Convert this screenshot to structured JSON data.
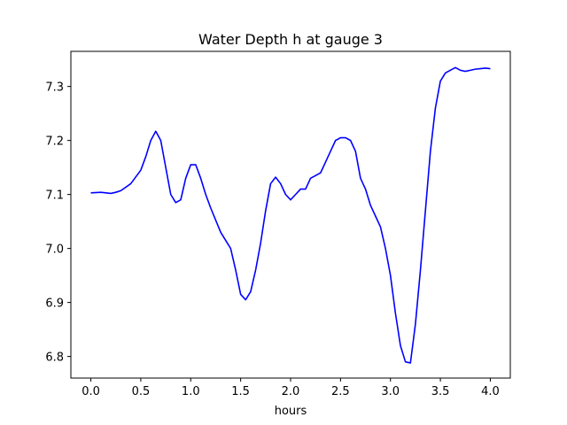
{
  "chart_data": {
    "type": "line",
    "title": "Water Depth h at gauge 3",
    "xlabel": "hours",
    "ylabel": "",
    "xlim": [
      -0.2,
      4.2
    ],
    "ylim": [
      6.76,
      7.365
    ],
    "xticks": [
      0.0,
      0.5,
      1.0,
      1.5,
      2.0,
      2.5,
      3.0,
      3.5,
      4.0
    ],
    "xtick_labels": [
      "0.0",
      "0.5",
      "1.0",
      "1.5",
      "2.0",
      "2.5",
      "3.0",
      "3.5",
      "4.0"
    ],
    "yticks": [
      6.8,
      6.9,
      7.0,
      7.1,
      7.2,
      7.3
    ],
    "ytick_labels": [
      "6.8",
      "6.9",
      "7.0",
      "7.1",
      "7.2",
      "7.3"
    ],
    "grid": false,
    "series": [
      {
        "color": "#0000ff",
        "x": [
          0.0,
          0.1,
          0.2,
          0.25,
          0.3,
          0.4,
          0.5,
          0.55,
          0.6,
          0.65,
          0.7,
          0.75,
          0.8,
          0.85,
          0.9,
          0.95,
          1.0,
          1.05,
          1.1,
          1.15,
          1.2,
          1.3,
          1.4,
          1.45,
          1.5,
          1.55,
          1.6,
          1.65,
          1.7,
          1.75,
          1.8,
          1.85,
          1.9,
          1.95,
          2.0,
          2.05,
          2.1,
          2.15,
          2.2,
          2.25,
          2.3,
          2.35,
          2.4,
          2.45,
          2.5,
          2.55,
          2.6,
          2.65,
          2.7,
          2.75,
          2.8,
          2.85,
          2.9,
          2.95,
          3.0,
          3.05,
          3.1,
          3.15,
          3.2,
          3.25,
          3.3,
          3.35,
          3.4,
          3.45,
          3.5,
          3.55,
          3.6,
          3.65,
          3.7,
          3.75,
          3.8,
          3.85,
          3.9,
          3.95,
          4.0
        ],
        "y": [
          7.103,
          7.104,
          7.102,
          7.104,
          7.107,
          7.12,
          7.145,
          7.17,
          7.2,
          7.217,
          7.2,
          7.15,
          7.1,
          7.085,
          7.09,
          7.13,
          7.155,
          7.155,
          7.13,
          7.1,
          7.075,
          7.03,
          7.0,
          6.96,
          6.915,
          6.905,
          6.92,
          6.96,
          7.01,
          7.07,
          7.12,
          7.132,
          7.12,
          7.1,
          7.09,
          7.1,
          7.11,
          7.11,
          7.13,
          7.135,
          7.14,
          7.16,
          7.18,
          7.2,
          7.205,
          7.205,
          7.2,
          7.18,
          7.13,
          7.11,
          7.08,
          7.06,
          7.04,
          7.0,
          6.95,
          6.88,
          6.82,
          6.79,
          6.788,
          6.86,
          6.96,
          7.07,
          7.18,
          7.26,
          7.31,
          7.325,
          7.33,
          7.335,
          7.33,
          7.328,
          7.33,
          7.332,
          7.333,
          7.334,
          7.333
        ]
      }
    ]
  }
}
